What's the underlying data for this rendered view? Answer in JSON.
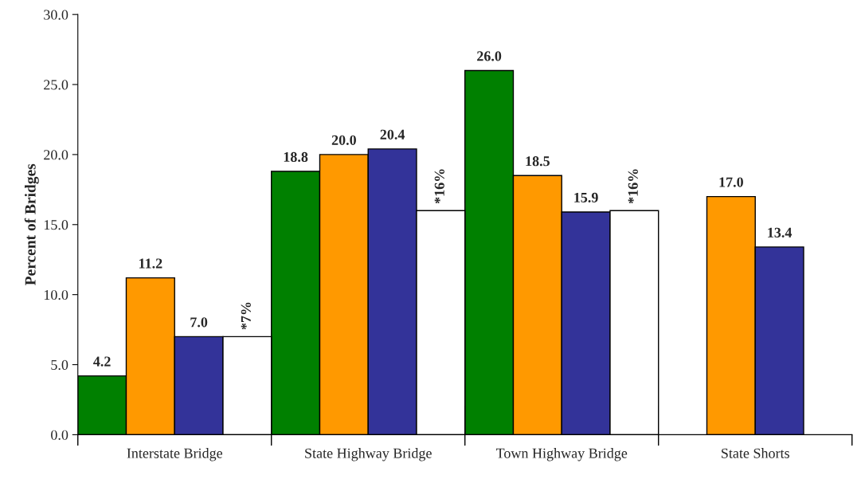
{
  "chart_data": {
    "type": "bar",
    "ylabel": "Percent of Bridges",
    "categories": [
      "Interstate Bridge",
      "State Highway Bridge",
      "Town Highway Bridge",
      "State Shorts"
    ],
    "series": [
      {
        "color": "#008000",
        "values": [
          4.2,
          18.8,
          26.0,
          null
        ],
        "value_labels": [
          "4.2",
          "18.8",
          "26.0",
          null
        ]
      },
      {
        "color": "#ff9900",
        "values": [
          11.2,
          20.0,
          18.5,
          17.0
        ],
        "value_labels": [
          "11.2",
          "20.0",
          "18.5",
          "17.0"
        ]
      },
      {
        "color": "#333399",
        "values": [
          7.0,
          20.4,
          15.9,
          13.4
        ],
        "value_labels": [
          "7.0",
          "20.4",
          "15.9",
          "13.4"
        ]
      },
      {
        "color": "#ffffff",
        "values": [
          7,
          16,
          16,
          null
        ],
        "value_labels": [
          "*7%",
          "*16%",
          "*16%",
          null
        ]
      }
    ],
    "ylim": [
      0,
      30
    ],
    "yticks": [
      {
        "value": 0,
        "label": "0.0"
      },
      {
        "value": 5,
        "label": "5.0"
      },
      {
        "value": 10,
        "label": "10.0"
      },
      {
        "value": 15,
        "label": "15.0"
      },
      {
        "value": 20,
        "label": "20.0"
      },
      {
        "value": 25,
        "label": "25.0"
      },
      {
        "value": 30,
        "label": "30.0"
      }
    ],
    "grid": false,
    "legend": false
  }
}
